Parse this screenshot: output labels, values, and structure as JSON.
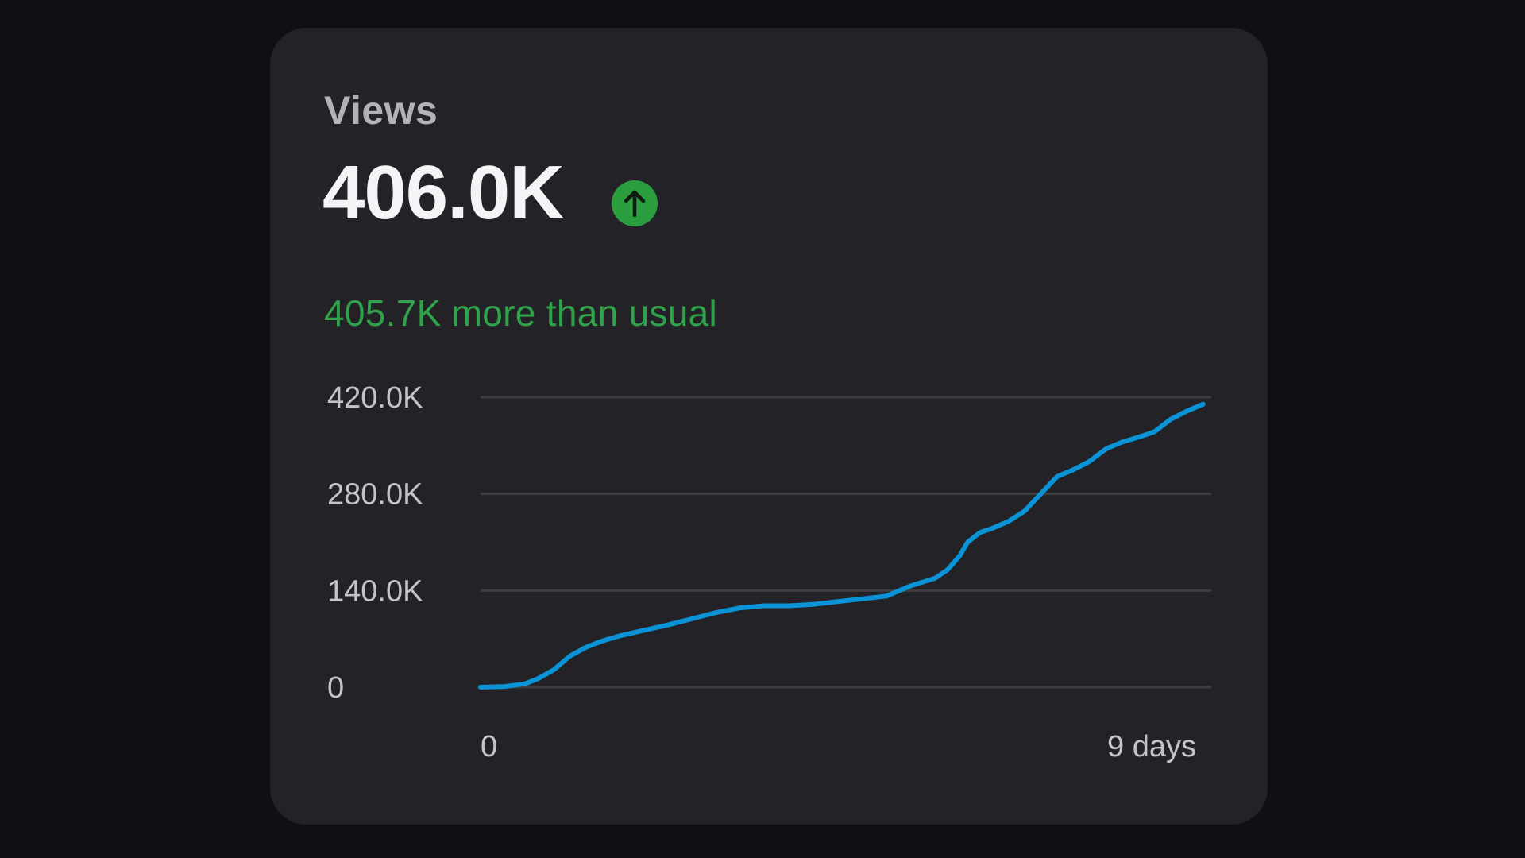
{
  "card": {
    "title": "Views",
    "value": "406.0K",
    "trend_icon": "arrow-up-icon",
    "trend_color": "#2a9d3f",
    "comparison": "405.7K more than usual",
    "comparison_color": "#2fa34a"
  },
  "chart_data": {
    "type": "line",
    "title": "",
    "xlabel": "",
    "ylabel": "",
    "x_tick_labels": [
      "0",
      "9 days"
    ],
    "y_tick_labels": [
      "0",
      "140.0K",
      "280.0K",
      "420.0K"
    ],
    "y_ticks": [
      0,
      140000,
      280000,
      420000
    ],
    "xlim": [
      0,
      9
    ],
    "ylim": [
      0,
      420000
    ],
    "grid": true,
    "line_color": "#0a93d6",
    "series": [
      {
        "x": [
          0,
          0.3,
          0.55,
          0.7,
          0.9,
          1.1,
          1.3,
          1.5,
          1.7,
          2.0,
          2.3,
          2.6,
          2.9,
          3.2,
          3.5,
          3.8,
          4.1,
          4.4,
          4.7,
          5.0,
          5.3,
          5.6,
          5.75,
          5.9,
          6.0,
          6.15,
          6.3,
          6.5,
          6.7,
          6.9,
          7.1,
          7.3,
          7.5,
          7.7,
          7.9,
          8.1,
          8.3,
          8.5,
          8.7,
          8.9
        ],
        "y": [
          0,
          1000,
          5000,
          12000,
          25000,
          45000,
          58000,
          67000,
          74000,
          82000,
          90000,
          99000,
          108000,
          115000,
          118000,
          118000,
          120000,
          124000,
          128000,
          132000,
          147000,
          158000,
          170000,
          190000,
          210000,
          224000,
          230000,
          240000,
          255000,
          280000,
          305000,
          315000,
          327000,
          345000,
          355000,
          362000,
          370000,
          388000,
          400000,
          410000
        ]
      }
    ]
  }
}
